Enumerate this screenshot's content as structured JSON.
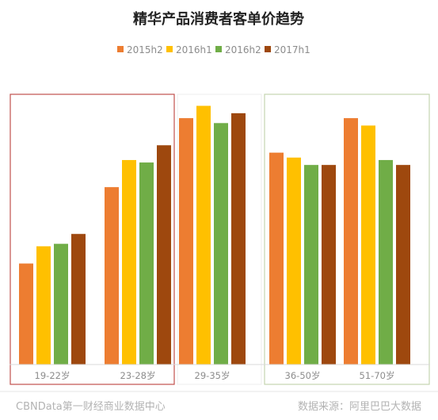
{
  "chart_data": {
    "type": "bar",
    "title": "精华产品消费者客单价趋势",
    "categories": [
      "19-22岁",
      "23-28岁",
      "29-35岁",
      "36-50岁",
      "51-70岁"
    ],
    "series": [
      {
        "name": "2015h2",
        "color": "#ED7D31",
        "values": [
          41,
          72,
          100,
          86,
          100
        ]
      },
      {
        "name": "2016h1",
        "color": "#FFC000",
        "values": [
          48,
          83,
          105,
          84,
          97
        ]
      },
      {
        "name": "2016h2",
        "color": "#70AD47",
        "values": [
          49,
          82,
          98,
          81,
          83
        ]
      },
      {
        "name": "2017h1",
        "color": "#9E480E",
        "values": [
          53,
          89,
          102,
          81,
          81
        ]
      }
    ],
    "ylim": [
      0,
      110
    ],
    "grid": false,
    "legend_position": "top",
    "highlight_groups": [
      {
        "categories": [
          "19-22岁",
          "23-28岁"
        ],
        "border_color": "#C0504D"
      },
      {
        "categories": [
          "36-50岁",
          "51-70岁"
        ],
        "border_color": "#C5D4B0"
      }
    ],
    "xlabel": "",
    "ylabel": ""
  },
  "footer": {
    "left": "CBNData第一财经商业数据中心",
    "right": "数据来源：阿里巴巴大数据"
  }
}
